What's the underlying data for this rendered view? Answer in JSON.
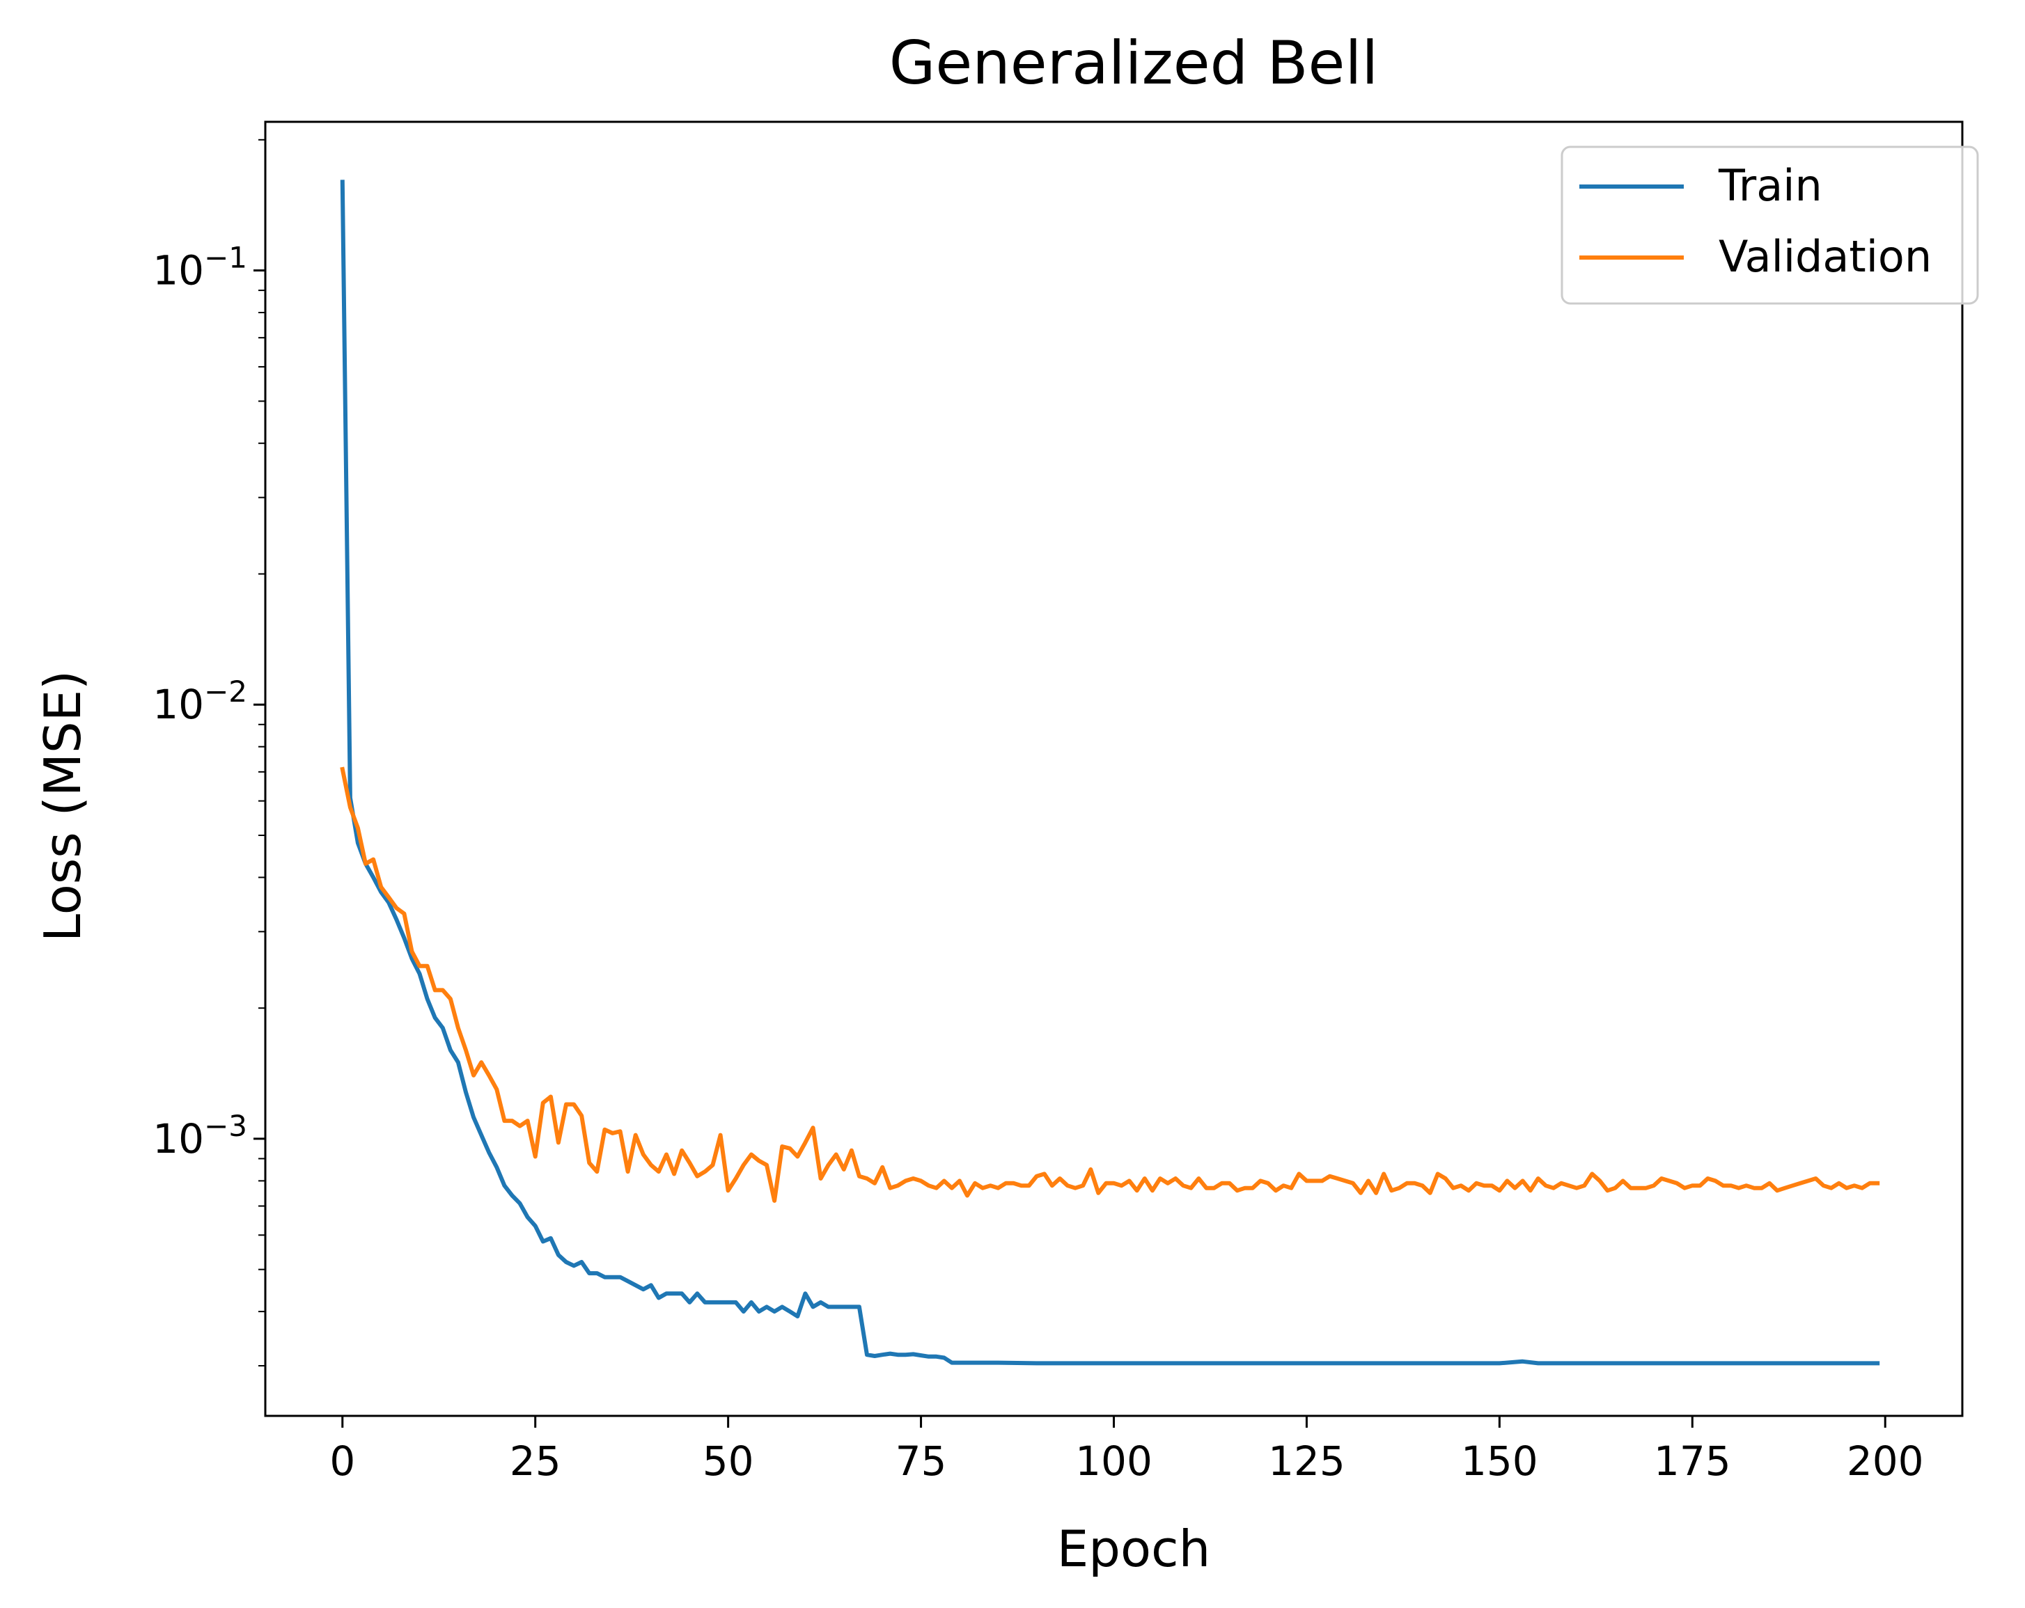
{
  "chart_data": {
    "type": "line",
    "title": "Generalized Bell",
    "xlabel": "Epoch",
    "ylabel": "Loss (MSE)",
    "xlim": [
      -10,
      210
    ],
    "ylim": [
      0.00023,
      0.22
    ],
    "yscale": "log",
    "grid": false,
    "legend_position": "top-right",
    "x_ticks": [
      0,
      25,
      50,
      75,
      100,
      125,
      150,
      175,
      200
    ],
    "y_ticks": [
      {
        "value": 0.1,
        "base": "10",
        "exp": "−1"
      },
      {
        "value": 0.01,
        "base": "10",
        "exp": "−2"
      },
      {
        "value": 0.001,
        "base": "10",
        "exp": "−3"
      }
    ],
    "series": [
      {
        "name": "Train",
        "color": "#1f77b4",
        "points": [
          [
            0,
            0.16
          ],
          [
            1,
            0.0061
          ],
          [
            2,
            0.0048
          ],
          [
            3,
            0.0043
          ],
          [
            4,
            0.004
          ],
          [
            5,
            0.0037
          ],
          [
            6,
            0.0035
          ],
          [
            7,
            0.0032
          ],
          [
            8,
            0.0029
          ],
          [
            9,
            0.0026
          ],
          [
            10,
            0.0024
          ],
          [
            11,
            0.0021
          ],
          [
            12,
            0.0019
          ],
          [
            13,
            0.0018
          ],
          [
            14,
            0.0016
          ],
          [
            15,
            0.0015
          ],
          [
            16,
            0.00128
          ],
          [
            17,
            0.00112
          ],
          [
            18,
            0.00102
          ],
          [
            19,
            0.00093
          ],
          [
            20,
            0.00086
          ],
          [
            21,
            0.00078
          ],
          [
            22,
            0.00074
          ],
          [
            23,
            0.00071
          ],
          [
            24,
            0.00066
          ],
          [
            25,
            0.00063
          ],
          [
            26,
            0.00058
          ],
          [
            27,
            0.00059
          ],
          [
            28,
            0.00054
          ],
          [
            29,
            0.00052
          ],
          [
            30,
            0.00051
          ],
          [
            31,
            0.00052
          ],
          [
            32,
            0.00049
          ],
          [
            33,
            0.00049
          ],
          [
            34,
            0.00048
          ],
          [
            35,
            0.00048
          ],
          [
            36,
            0.00048
          ],
          [
            37,
            0.00047
          ],
          [
            38,
            0.00046
          ],
          [
            39,
            0.00045
          ],
          [
            40,
            0.00046
          ],
          [
            41,
            0.00043
          ],
          [
            42,
            0.00044
          ],
          [
            43,
            0.00044
          ],
          [
            44,
            0.00044
          ],
          [
            45,
            0.00042
          ],
          [
            46,
            0.00044
          ],
          [
            47,
            0.00042
          ],
          [
            48,
            0.00042
          ],
          [
            49,
            0.00042
          ],
          [
            50,
            0.00042
          ],
          [
            51,
            0.00042
          ],
          [
            52,
            0.0004
          ],
          [
            53,
            0.00042
          ],
          [
            54,
            0.0004
          ],
          [
            55,
            0.00041
          ],
          [
            56,
            0.0004
          ],
          [
            57,
            0.00041
          ],
          [
            58,
            0.0004
          ],
          [
            59,
            0.00039
          ],
          [
            60,
            0.00044
          ],
          [
            61,
            0.00041
          ],
          [
            62,
            0.00042
          ],
          [
            63,
            0.00041
          ],
          [
            64,
            0.00041
          ],
          [
            65,
            0.00041
          ],
          [
            66,
            0.00041
          ],
          [
            67,
            0.00041
          ],
          [
            68,
            0.000318
          ],
          [
            69,
            0.000316
          ],
          [
            70,
            0.000318
          ],
          [
            71,
            0.00032
          ],
          [
            72,
            0.000318
          ],
          [
            73,
            0.000318
          ],
          [
            74,
            0.000319
          ],
          [
            75,
            0.000317
          ],
          [
            76,
            0.000315
          ],
          [
            77,
            0.000315
          ],
          [
            78,
            0.000313
          ],
          [
            79,
            0.000305
          ],
          [
            80,
            0.000305
          ],
          [
            85,
            0.000305
          ],
          [
            90,
            0.000304
          ],
          [
            95,
            0.000304
          ],
          [
            100,
            0.000304
          ],
          [
            105,
            0.000304
          ],
          [
            110,
            0.000304
          ],
          [
            115,
            0.000304
          ],
          [
            120,
            0.000304
          ],
          [
            125,
            0.000304
          ],
          [
            130,
            0.000304
          ],
          [
            135,
            0.000304
          ],
          [
            140,
            0.000304
          ],
          [
            145,
            0.000304
          ],
          [
            150,
            0.000304
          ],
          [
            153,
            0.000307
          ],
          [
            155,
            0.000304
          ],
          [
            160,
            0.000304
          ],
          [
            165,
            0.000304
          ],
          [
            170,
            0.000304
          ],
          [
            175,
            0.000304
          ],
          [
            180,
            0.000304
          ],
          [
            185,
            0.000304
          ],
          [
            190,
            0.000304
          ],
          [
            195,
            0.000304
          ],
          [
            199,
            0.000304
          ]
        ]
      },
      {
        "name": "Validation",
        "color": "#ff7f0e",
        "points": [
          [
            0,
            0.0071
          ],
          [
            1,
            0.0058
          ],
          [
            2,
            0.0052
          ],
          [
            3,
            0.0043
          ],
          [
            4,
            0.0044
          ],
          [
            5,
            0.0038
          ],
          [
            6,
            0.0036
          ],
          [
            7,
            0.0034
          ],
          [
            8,
            0.0033
          ],
          [
            9,
            0.0027
          ],
          [
            10,
            0.0025
          ],
          [
            11,
            0.0025
          ],
          [
            12,
            0.0022
          ],
          [
            13,
            0.0022
          ],
          [
            14,
            0.0021
          ],
          [
            15,
            0.0018
          ],
          [
            16,
            0.0016
          ],
          [
            17,
            0.0014
          ],
          [
            18,
            0.0015
          ],
          [
            19,
            0.0014
          ],
          [
            20,
            0.0013
          ],
          [
            21,
            0.0011
          ],
          [
            22,
            0.0011
          ],
          [
            23,
            0.00107
          ],
          [
            24,
            0.0011
          ],
          [
            25,
            0.00091
          ],
          [
            26,
            0.00121
          ],
          [
            27,
            0.00125
          ],
          [
            28,
            0.00098
          ],
          [
            29,
            0.0012
          ],
          [
            30,
            0.0012
          ],
          [
            31,
            0.00113
          ],
          [
            32,
            0.00088
          ],
          [
            33,
            0.00084
          ],
          [
            34,
            0.00105
          ],
          [
            35,
            0.00103
          ],
          [
            36,
            0.00104
          ],
          [
            37,
            0.00084
          ],
          [
            38,
            0.00102
          ],
          [
            39,
            0.00092
          ],
          [
            40,
            0.00087
          ],
          [
            41,
            0.00084
          ],
          [
            42,
            0.00092
          ],
          [
            43,
            0.00083
          ],
          [
            44,
            0.00094
          ],
          [
            45,
            0.00088
          ],
          [
            46,
            0.00082
          ],
          [
            47,
            0.00084
          ],
          [
            48,
            0.00087
          ],
          [
            49,
            0.00102
          ],
          [
            50,
            0.00076
          ],
          [
            51,
            0.00081
          ],
          [
            52,
            0.00087
          ],
          [
            53,
            0.00092
          ],
          [
            54,
            0.00089
          ],
          [
            55,
            0.00087
          ],
          [
            56,
            0.00072
          ],
          [
            57,
            0.00096
          ],
          [
            58,
            0.00095
          ],
          [
            59,
            0.00091
          ],
          [
            60,
            0.00098
          ],
          [
            61,
            0.00106
          ],
          [
            62,
            0.00081
          ],
          [
            63,
            0.00087
          ],
          [
            64,
            0.00092
          ],
          [
            65,
            0.00085
          ],
          [
            66,
            0.00094
          ],
          [
            67,
            0.00082
          ],
          [
            68,
            0.00081
          ],
          [
            69,
            0.00079
          ],
          [
            70,
            0.00086
          ],
          [
            71,
            0.00077
          ],
          [
            72,
            0.00078
          ],
          [
            73,
            0.0008
          ],
          [
            74,
            0.00081
          ],
          [
            75,
            0.0008
          ],
          [
            76,
            0.00078
          ],
          [
            77,
            0.00077
          ],
          [
            78,
            0.0008
          ],
          [
            79,
            0.00077
          ],
          [
            80,
            0.0008
          ],
          [
            81,
            0.00074
          ],
          [
            82,
            0.00079
          ],
          [
            83,
            0.00077
          ],
          [
            84,
            0.00078
          ],
          [
            85,
            0.00077
          ],
          [
            86,
            0.00079
          ],
          [
            87,
            0.00079
          ],
          [
            88,
            0.00078
          ],
          [
            89,
            0.00078
          ],
          [
            90,
            0.00082
          ],
          [
            91,
            0.00083
          ],
          [
            92,
            0.00078
          ],
          [
            93,
            0.00081
          ],
          [
            94,
            0.00078
          ],
          [
            95,
            0.00077
          ],
          [
            96,
            0.00078
          ],
          [
            97,
            0.00085
          ],
          [
            98,
            0.00075
          ],
          [
            99,
            0.00079
          ],
          [
            100,
            0.00079
          ],
          [
            101,
            0.00078
          ],
          [
            102,
            0.0008
          ],
          [
            103,
            0.00076
          ],
          [
            104,
            0.00081
          ],
          [
            105,
            0.00076
          ],
          [
            106,
            0.00081
          ],
          [
            107,
            0.00079
          ],
          [
            108,
            0.00081
          ],
          [
            109,
            0.00078
          ],
          [
            110,
            0.00077
          ],
          [
            111,
            0.00081
          ],
          [
            112,
            0.00077
          ],
          [
            113,
            0.00077
          ],
          [
            114,
            0.00079
          ],
          [
            115,
            0.00079
          ],
          [
            116,
            0.00076
          ],
          [
            117,
            0.00077
          ],
          [
            118,
            0.00077
          ],
          [
            119,
            0.0008
          ],
          [
            120,
            0.00079
          ],
          [
            121,
            0.00076
          ],
          [
            122,
            0.00078
          ],
          [
            123,
            0.00077
          ],
          [
            124,
            0.00083
          ],
          [
            125,
            0.0008
          ],
          [
            126,
            0.0008
          ],
          [
            127,
            0.0008
          ],
          [
            128,
            0.00082
          ],
          [
            129,
            0.00081
          ],
          [
            130,
            0.0008
          ],
          [
            131,
            0.00079
          ],
          [
            132,
            0.00075
          ],
          [
            133,
            0.0008
          ],
          [
            134,
            0.00075
          ],
          [
            135,
            0.00083
          ],
          [
            136,
            0.00076
          ],
          [
            137,
            0.00077
          ],
          [
            138,
            0.00079
          ],
          [
            139,
            0.00079
          ],
          [
            140,
            0.00078
          ],
          [
            141,
            0.00075
          ],
          [
            142,
            0.00083
          ],
          [
            143,
            0.00081
          ],
          [
            144,
            0.00077
          ],
          [
            145,
            0.00078
          ],
          [
            146,
            0.00076
          ],
          [
            147,
            0.00079
          ],
          [
            148,
            0.00078
          ],
          [
            149,
            0.00078
          ],
          [
            150,
            0.00076
          ],
          [
            151,
            0.0008
          ],
          [
            152,
            0.00077
          ],
          [
            153,
            0.0008
          ],
          [
            154,
            0.00076
          ],
          [
            155,
            0.00081
          ],
          [
            156,
            0.00078
          ],
          [
            157,
            0.00077
          ],
          [
            158,
            0.00079
          ],
          [
            159,
            0.00078
          ],
          [
            160,
            0.00077
          ],
          [
            161,
            0.00078
          ],
          [
            162,
            0.00083
          ],
          [
            163,
            0.0008
          ],
          [
            164,
            0.00076
          ],
          [
            165,
            0.00077
          ],
          [
            166,
            0.0008
          ],
          [
            167,
            0.00077
          ],
          [
            168,
            0.00077
          ],
          [
            169,
            0.00077
          ],
          [
            170,
            0.00078
          ],
          [
            171,
            0.00081
          ],
          [
            172,
            0.0008
          ],
          [
            173,
            0.00079
          ],
          [
            174,
            0.00077
          ],
          [
            175,
            0.00078
          ],
          [
            176,
            0.00078
          ],
          [
            177,
            0.00081
          ],
          [
            178,
            0.0008
          ],
          [
            179,
            0.00078
          ],
          [
            180,
            0.00078
          ],
          [
            181,
            0.00077
          ],
          [
            182,
            0.00078
          ],
          [
            183,
            0.00077
          ],
          [
            184,
            0.00077
          ],
          [
            185,
            0.00079
          ],
          [
            186,
            0.00076
          ],
          [
            187,
            0.00077
          ],
          [
            188,
            0.00078
          ],
          [
            189,
            0.00079
          ],
          [
            190,
            0.0008
          ],
          [
            191,
            0.00081
          ],
          [
            192,
            0.00078
          ],
          [
            193,
            0.00077
          ],
          [
            194,
            0.00079
          ],
          [
            195,
            0.00077
          ],
          [
            196,
            0.00078
          ],
          [
            197,
            0.00077
          ],
          [
            198,
            0.00079
          ],
          [
            199,
            0.00079
          ]
        ]
      }
    ]
  }
}
